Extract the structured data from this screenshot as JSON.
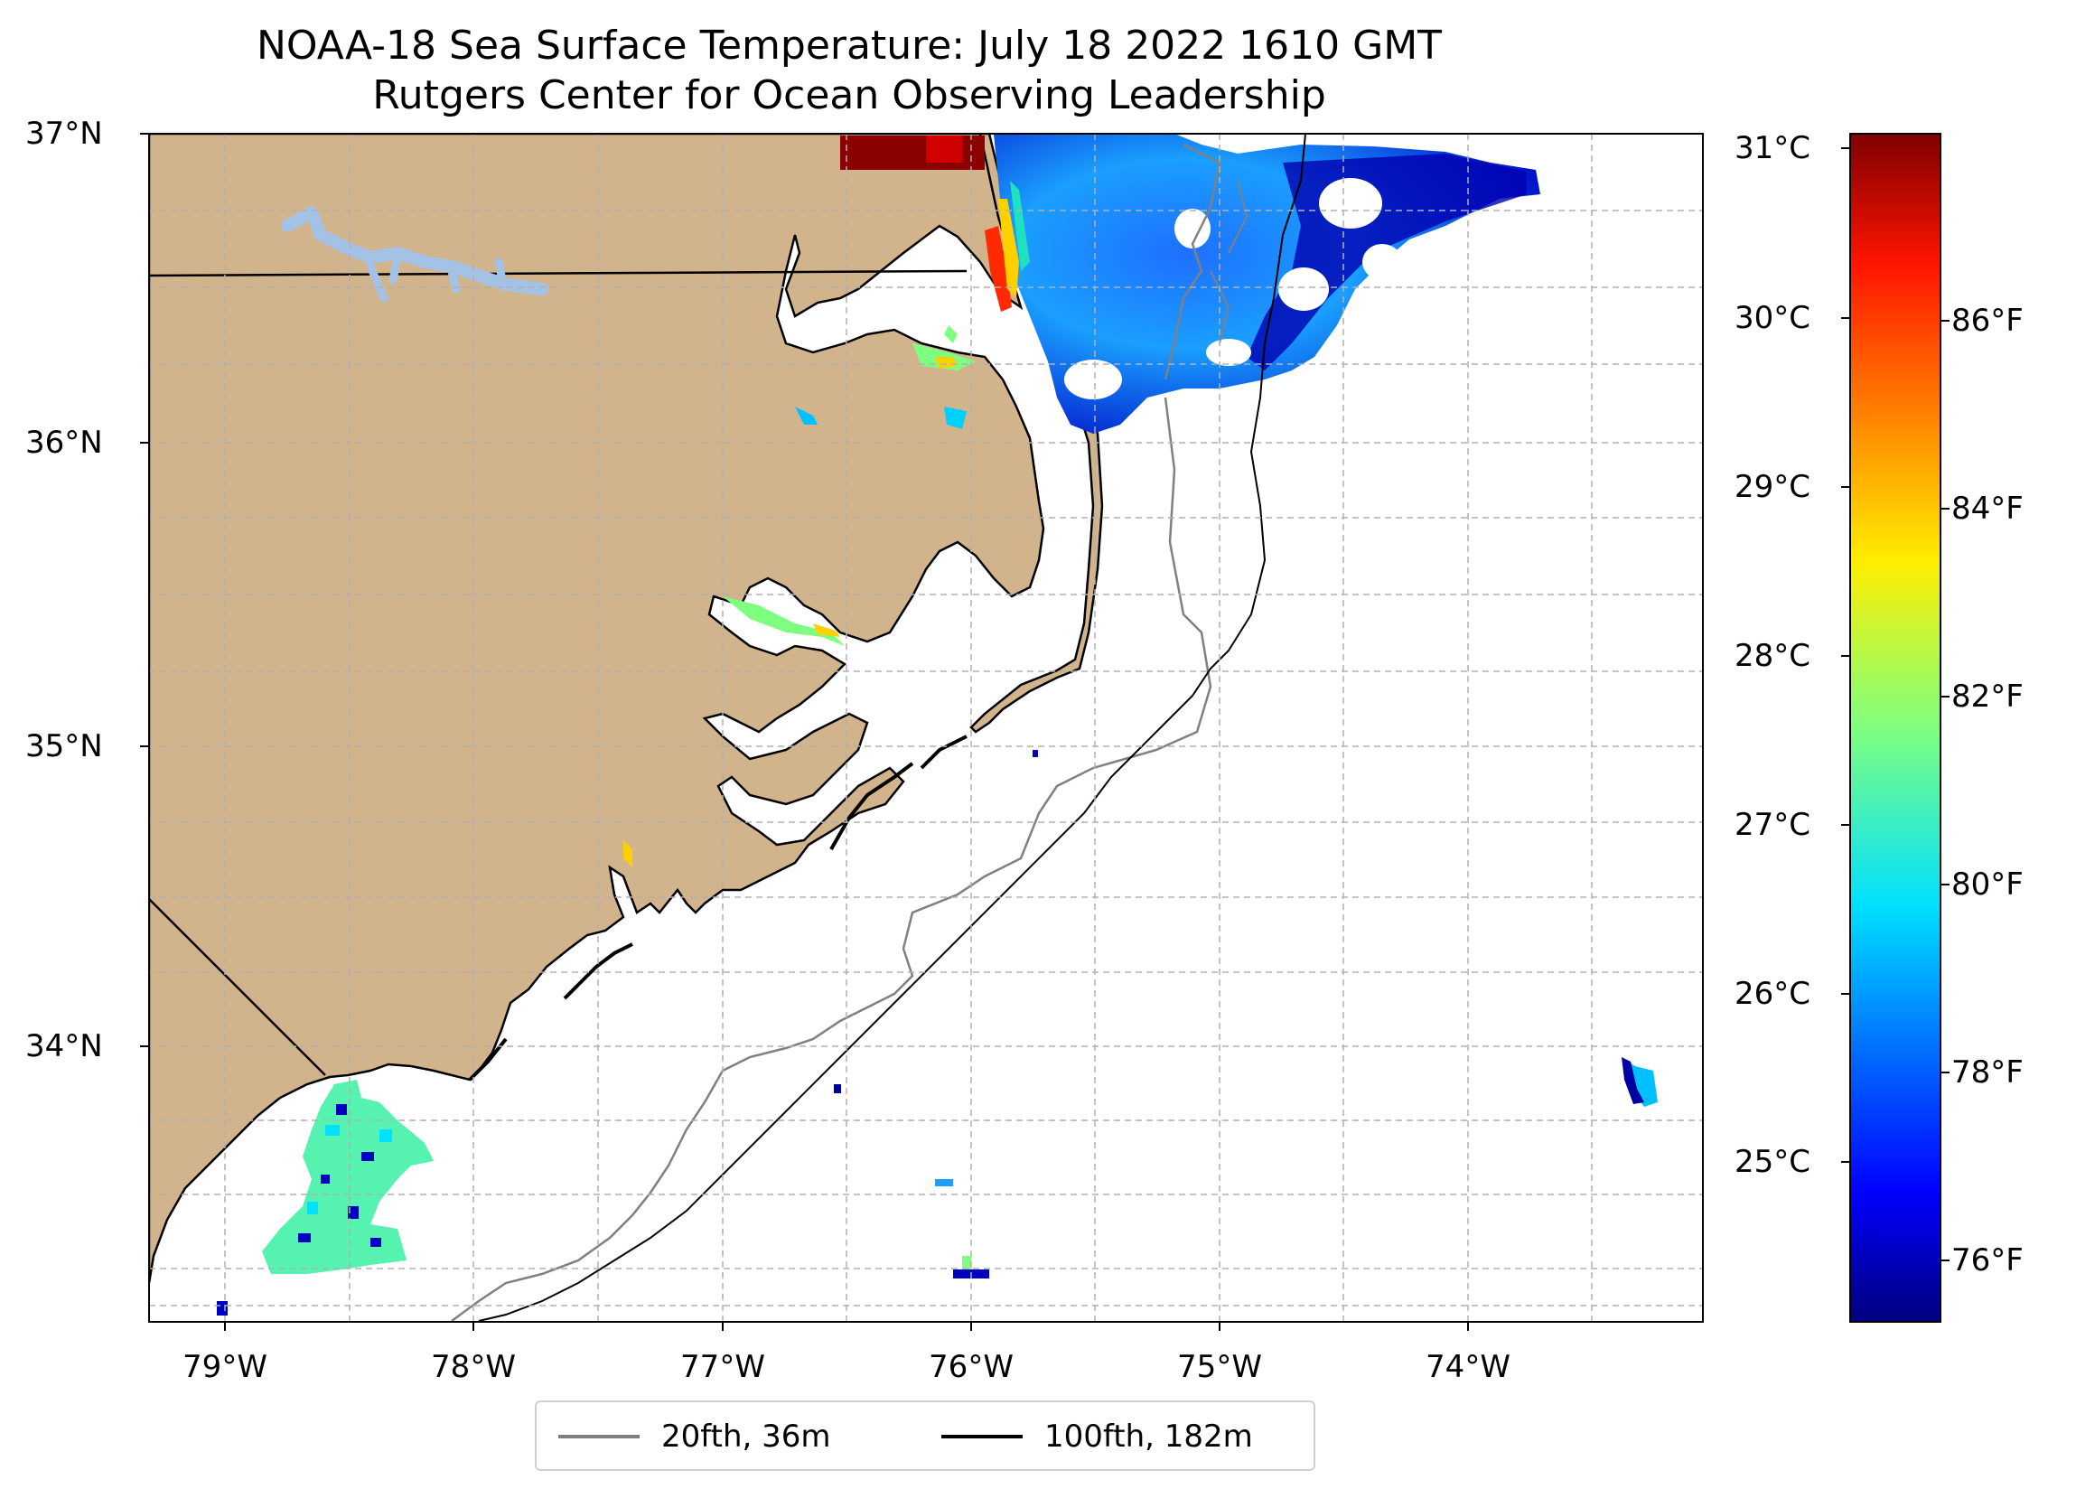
{
  "title": "NOAA-18 Sea Surface Temperature: July 18 2022 1610 GMT",
  "subtitle": "Rutgers Center for Ocean Observing Leadership",
  "map": {
    "lat_ticks": [
      "37°N",
      "36°N",
      "35°N",
      "34°N"
    ],
    "lon_ticks": [
      "79°W",
      "78°W",
      "77°W",
      "76°W",
      "75°W",
      "74°W"
    ],
    "extent": {
      "lon_min": -79.3,
      "lon_max": -73.1,
      "lat_min": 33.1,
      "lat_max": 37.0
    },
    "land_color": "#d2b48c",
    "water_body_color": "#a4c2e6",
    "gridlines": true
  },
  "colorbar": {
    "celsius_ticks": [
      "31°C",
      "30°C",
      "29°C",
      "28°C",
      "27°C",
      "26°C",
      "25°C"
    ],
    "fahrenheit_ticks": [
      "86°F",
      "84°F",
      "82°F",
      "80°F",
      "78°F",
      "76°F"
    ],
    "range_celsius": [
      24.1,
      31.1
    ],
    "colormap": "jet"
  },
  "legend": {
    "items": [
      {
        "label": "20fth, 36m",
        "color": "#808080"
      },
      {
        "label": "100fth, 182m",
        "color": "#000000"
      }
    ]
  }
}
